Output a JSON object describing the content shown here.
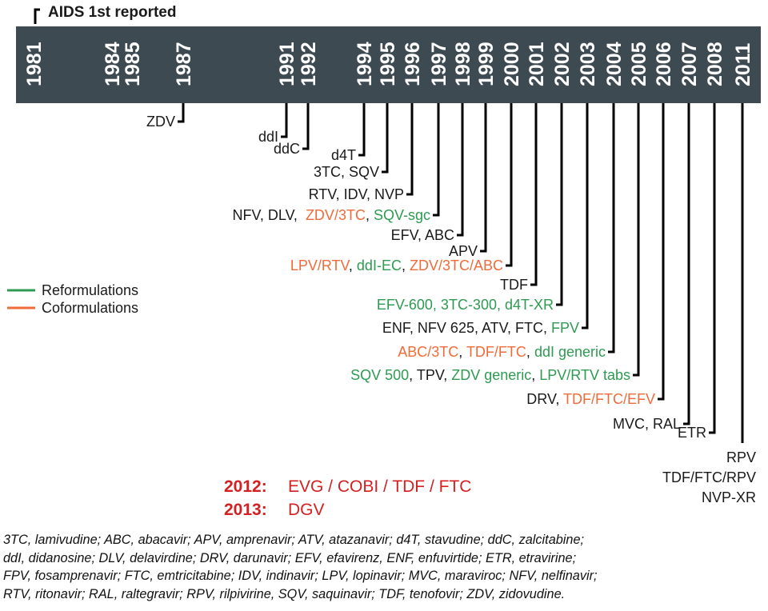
{
  "colors": {
    "band": "#3e4a52",
    "black": "#1a1a1a",
    "orange": "#ef6c3a",
    "green": "#2e9a52",
    "red": "#d42020"
  },
  "header_label": "AIDS 1st reported",
  "years": [
    "1981",
    "1984",
    "1985",
    "1987",
    "1991",
    "1992",
    "1994",
    "1995",
    "1996",
    "1997",
    "1998",
    "1999",
    "2000",
    "2001",
    "2002",
    "2003",
    "2004",
    "2005",
    "2006",
    "2007",
    "2008",
    "2011"
  ],
  "legend": [
    {
      "label": "Reformulations",
      "color": "green"
    },
    {
      "label": "Coformulations",
      "color": "orange"
    }
  ],
  "events": [
    {
      "year": "1987",
      "segments": [
        {
          "text": "ZDV",
          "color": "black"
        }
      ]
    },
    {
      "year": "1991",
      "segments": [
        {
          "text": "ddI",
          "color": "black"
        }
      ]
    },
    {
      "year": "1992",
      "segments": [
        {
          "text": "ddC",
          "color": "black"
        }
      ]
    },
    {
      "year": "1994",
      "segments": [
        {
          "text": "d4T",
          "color": "black"
        }
      ]
    },
    {
      "year": "1995",
      "segments": [
        {
          "text": "3TC, SQV",
          "color": "black"
        }
      ]
    },
    {
      "year": "1996",
      "segments": [
        {
          "text": "RTV, IDV, NVP",
          "color": "black"
        }
      ]
    },
    {
      "year": "1997",
      "segments": [
        {
          "text": "NFV, DLV,  ",
          "color": "black"
        },
        {
          "text": "ZDV/3TC",
          "color": "orange"
        },
        {
          "text": ", ",
          "color": "black"
        },
        {
          "text": "SQV-sgc",
          "color": "green"
        }
      ]
    },
    {
      "year": "1998",
      "segments": [
        {
          "text": "EFV, ABC",
          "color": "black"
        }
      ]
    },
    {
      "year": "1999",
      "segments": [
        {
          "text": "APV",
          "color": "black"
        }
      ]
    },
    {
      "year": "2000",
      "segments": [
        {
          "text": "LPV/RTV",
          "color": "orange"
        },
        {
          "text": ", ",
          "color": "black"
        },
        {
          "text": "ddI-EC",
          "color": "green"
        },
        {
          "text": ", ",
          "color": "black"
        },
        {
          "text": "ZDV/3TC/ABC",
          "color": "orange"
        }
      ]
    },
    {
      "year": "2001",
      "segments": [
        {
          "text": "TDF",
          "color": "black"
        }
      ]
    },
    {
      "year": "2002",
      "segments": [
        {
          "text": "EFV-600, 3TC-300, d4T-XR",
          "color": "green"
        }
      ]
    },
    {
      "year": "2003",
      "segments": [
        {
          "text": "ENF, NFV 625, ATV, FTC, ",
          "color": "black"
        },
        {
          "text": "FPV",
          "color": "green"
        }
      ]
    },
    {
      "year": "2004",
      "segments": [
        {
          "text": "ABC/3TC",
          "color": "orange"
        },
        {
          "text": ", ",
          "color": "black"
        },
        {
          "text": "TDF/FTC",
          "color": "orange"
        },
        {
          "text": ", ",
          "color": "black"
        },
        {
          "text": "ddI generic",
          "color": "green"
        }
      ]
    },
    {
      "year": "2005",
      "segments": [
        {
          "text": "SQV 500",
          "color": "green"
        },
        {
          "text": ", TPV, ",
          "color": "black"
        },
        {
          "text": "ZDV generic",
          "color": "green"
        },
        {
          "text": ", ",
          "color": "black"
        },
        {
          "text": "LPV/RTV tabs",
          "color": "green"
        }
      ]
    },
    {
      "year": "2006",
      "segments": [
        {
          "text": "DRV, ",
          "color": "black"
        },
        {
          "text": "TDF/FTC/EFV",
          "color": "orange"
        }
      ]
    },
    {
      "year": "2007",
      "segments": [
        {
          "text": "MVC, RAL",
          "color": "black"
        }
      ]
    },
    {
      "year": "2008",
      "segments": [
        {
          "text": "ETR",
          "color": "black"
        }
      ]
    },
    {
      "year": "2011",
      "segments": [
        {
          "text": "RPV",
          "color": "black"
        }
      ],
      "extra": [
        {
          "text": "TDF/FTC/RPV",
          "color": "orange"
        },
        {
          "text": "NVP-XR",
          "color": "green"
        }
      ]
    }
  ],
  "later": [
    {
      "year": "2012:",
      "text": "EVG / COBI / TDF / FTC"
    },
    {
      "year": "2013:",
      "text": "DGV"
    }
  ],
  "footnote": [
    "3TC, lamivudine; ABC, abacavir; APV, amprenavir; ATV, atazanavir; d4T, stavudine;  ddC, zalcitabine;",
    "ddI, didanosine; DLV, delavirdine; DRV, darunavir; EFV, efavirenz, ENF, enfuvirtide; ETR, etravirine;",
    "FPV, fosamprenavir; FTC, emtricitabine; IDV, indinavir; LPV, lopinavir; MVC, maraviroc; NFV, nelfinavir;",
    "RTV, ritonavir; RAL, raltegravir; RPV, rilpivirine, SQV, saquinavir; TDF, tenofovir; ZDV, zidovudine."
  ]
}
